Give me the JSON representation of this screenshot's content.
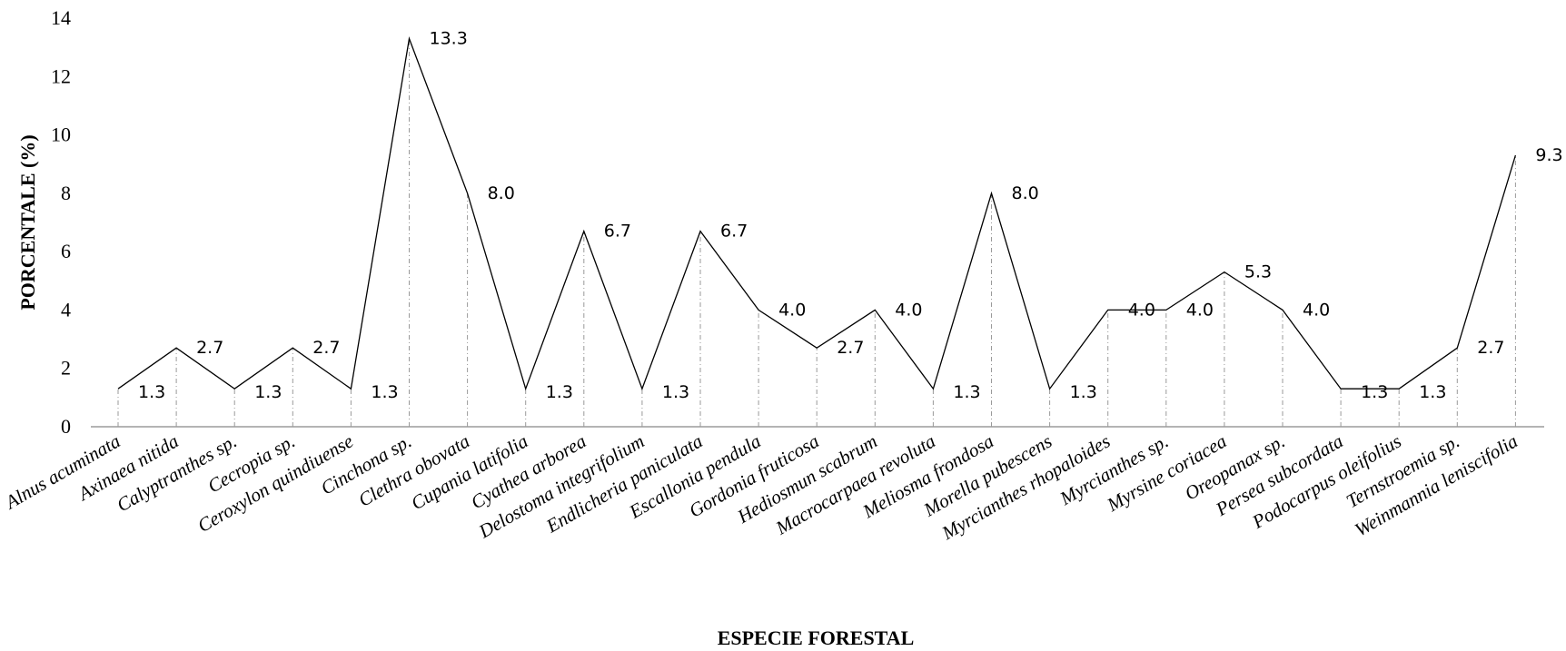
{
  "chart_data": {
    "type": "line",
    "title": "",
    "xlabel": "ESPECIE FORESTAL",
    "ylabel": "PORCENTALE (%)",
    "ylim": [
      0,
      14
    ],
    "yticks": [
      "0",
      "2",
      "4",
      "6",
      "8",
      "10",
      "12",
      "14"
    ],
    "grid": false,
    "drop_lines": true,
    "line_color": "#000000",
    "categories": [
      "Alnus acuminata",
      "Axinaea nitida",
      "Calyptranthes sp.",
      "Cecropia sp.",
      "Ceroxylon quindiuense",
      "Cinchona sp.",
      "Clethra obovata",
      "Cupania latifolia",
      "Cyathea arborea",
      "Delostoma integrifolium",
      "Endlicheria paniculata",
      "Escallonia pendula",
      "Gordonia fruticosa",
      "Hediosmun scabrum",
      "Macrocarpaea revoluta",
      "Meliosma frondosa",
      "Morella pubescens",
      "Myrcianthes rhopaloides",
      "Myrcianthes sp.",
      "Myrsine coriacea",
      "Oreopanax sp.",
      "Persea subcordata",
      "Podocarpus oleifolius",
      "Ternstroemia sp.",
      "Weinmannia leniscifolia"
    ],
    "values": [
      1.3,
      2.7,
      1.3,
      2.7,
      1.3,
      13.3,
      8.0,
      1.3,
      6.7,
      1.3,
      6.7,
      4.0,
      2.7,
      4.0,
      1.3,
      8.0,
      1.3,
      4.0,
      4.0,
      5.3,
      4.0,
      1.3,
      1.3,
      2.7,
      9.3
    ],
    "data_labels": [
      "1.3",
      "2.7",
      "1.3",
      "2.7",
      "1.3",
      "13.3",
      "8.0",
      "1.3",
      "6.7",
      "1.3",
      "6.7",
      "4.0",
      "2.7",
      "4.0",
      "1.3",
      "8.0",
      "1.3",
      "4.0",
      "4.0",
      "5.3",
      "4.0",
      "1.3",
      "1.3",
      "2.7",
      "9.3"
    ]
  }
}
